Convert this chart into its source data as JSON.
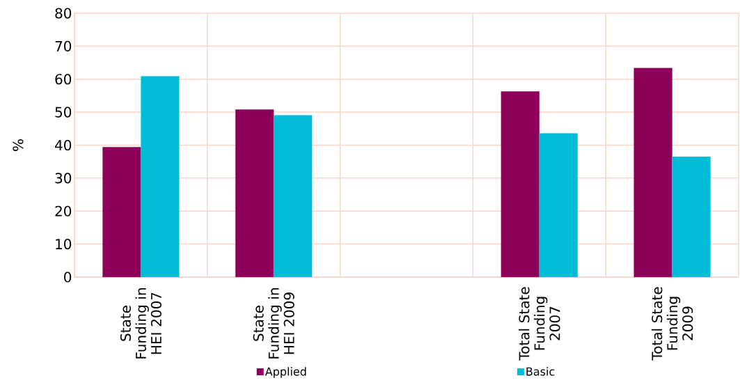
{
  "chart_data": {
    "type": "bar",
    "ylabel": "%",
    "categories": [
      "State Funding in HEI 2007",
      "State Funding in HEI 2009",
      null,
      "Total State Funding 2007",
      "Total State Funding 2009"
    ],
    "series": [
      {
        "name": "Applied",
        "color": "#8c005a",
        "values": [
          39.4,
          50.8,
          null,
          56.3,
          63.4
        ]
      },
      {
        "name": "Basic",
        "color": "#00bcd8",
        "values": [
          60.9,
          49.1,
          null,
          43.6,
          36.5
        ]
      }
    ],
    "ylim": [
      0,
      80
    ],
    "yticks": [
      0,
      10,
      20,
      30,
      40,
      50,
      60,
      70,
      80
    ],
    "grid": true,
    "legend": "bottom"
  }
}
